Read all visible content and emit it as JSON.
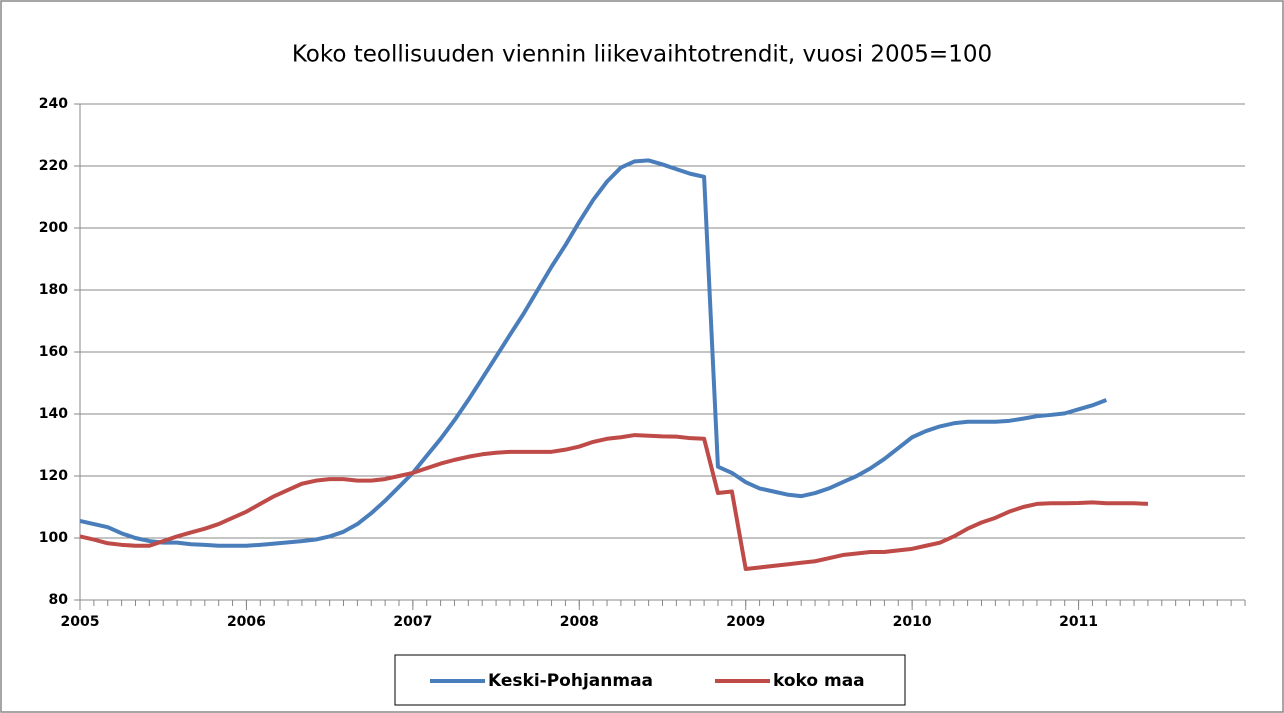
{
  "chart_data": {
    "type": "line",
    "title": "Koko teollisuuden viennin liikevaihtotrendit, vuosi 2005=100",
    "x": [
      2005,
      2005.083,
      2005.167,
      2005.25,
      2005.333,
      2005.417,
      2005.5,
      2005.583,
      2005.667,
      2005.75,
      2005.833,
      2005.917,
      2006,
      2006.083,
      2006.167,
      2006.25,
      2006.333,
      2006.417,
      2006.5,
      2006.583,
      2006.667,
      2006.75,
      2006.833,
      2006.917,
      2007,
      2007.083,
      2007.167,
      2007.25,
      2007.333,
      2007.417,
      2007.5,
      2007.583,
      2007.667,
      2007.75,
      2007.833,
      2007.917,
      2008,
      2008.083,
      2008.167,
      2008.25,
      2008.333,
      2008.417,
      2008.5,
      2008.583,
      2008.667,
      2008.75,
      2008.833,
      2008.917,
      2009,
      2009.083,
      2009.167,
      2009.25,
      2009.333,
      2009.417,
      2009.5,
      2009.583,
      2009.667,
      2009.75,
      2009.833,
      2009.917,
      2010,
      2010.083,
      2010.167,
      2010.25,
      2010.333,
      2010.417,
      2010.5,
      2010.583,
      2010.667,
      2010.75,
      2010.833,
      2010.917,
      2011,
      2011.083,
      2011.167,
      2011.25,
      2011.333,
      2011.417
    ],
    "series": [
      {
        "name": "Keski-Pohjanmaa",
        "color": "#4a7ebb",
        "values": [
          105.5,
          104.5,
          103.5,
          101.5,
          100,
          99,
          98.5,
          98.5,
          98,
          97.8,
          97.5,
          97.5,
          97.5,
          97.8,
          98.2,
          98.6,
          99,
          99.5,
          100.5,
          102,
          104.5,
          108,
          112,
          116.5,
          121,
          126.5,
          132,
          138,
          144.5,
          151.5,
          158.5,
          165.5,
          172.5,
          180,
          187.5,
          194.5,
          202,
          209,
          215,
          219.5,
          221.5,
          221.8,
          220.5,
          219,
          217.5,
          216.5,
          123,
          121,
          118,
          116,
          115,
          114,
          113.5,
          114.5,
          116,
          118,
          120,
          122.5,
          125.5,
          129,
          132.5,
          134.5,
          136,
          137,
          137.5,
          137.5,
          137.5,
          137.8,
          138.5,
          139.3,
          139.7,
          140.2,
          141.5,
          142.8,
          144.5,
          null,
          null,
          null
        ]
      },
      {
        "name": "koko maa",
        "color": "#be4b48",
        "values": [
          100.5,
          99.5,
          98.3,
          97.8,
          97.5,
          97.5,
          99,
          100.5,
          101.8,
          103,
          104.5,
          106.5,
          108.5,
          111,
          113.5,
          115.5,
          117.5,
          118.5,
          119,
          119,
          118.5,
          118.5,
          119,
          120,
          121,
          122.5,
          124,
          125.2,
          126.2,
          127,
          127.5,
          127.8,
          127.8,
          127.8,
          127.8,
          128.5,
          129.5,
          131,
          132,
          132.5,
          133.2,
          133,
          132.8,
          132.7,
          132.2,
          132,
          114.5,
          115,
          90,
          90.5,
          91,
          91.5,
          92,
          92.5,
          93.5,
          94.5,
          95,
          95.5,
          95.5,
          96,
          96.5,
          97.5,
          98.5,
          100.5,
          103,
          105,
          106.5,
          108.5,
          110,
          111,
          111.2,
          111.2,
          111.3,
          111.5,
          111.2,
          111.2,
          111.2,
          111
        ]
      }
    ],
    "xlim": [
      2005,
      2012
    ],
    "xticks": [
      2005,
      2006,
      2007,
      2008,
      2009,
      2010,
      2011
    ],
    "ylim": [
      80,
      240
    ],
    "yticks": [
      80,
      100,
      120,
      140,
      160,
      180,
      200,
      220,
      240
    ],
    "grid": true,
    "legend": "bottom"
  }
}
